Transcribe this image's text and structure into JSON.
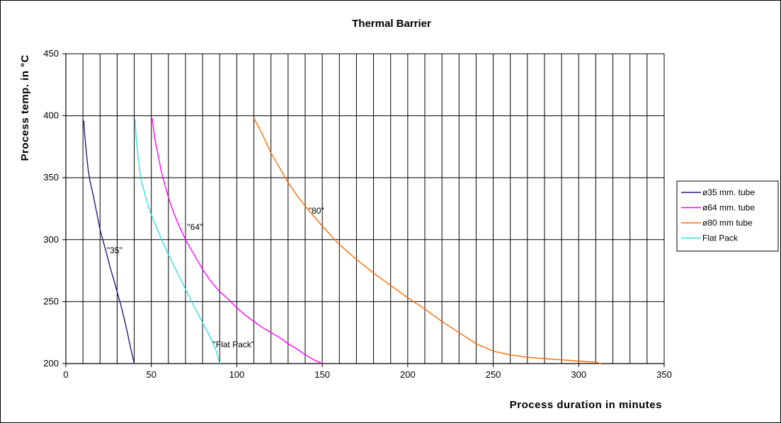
{
  "chart_data": {
    "type": "line",
    "title": "Thermal Barrier",
    "xlabel": "Process duration in minutes",
    "ylabel": "Process temp. in °C",
    "xlim": [
      0,
      350
    ],
    "ylim": [
      200,
      450
    ],
    "x_major_ticks": [
      "0",
      "50",
      "100",
      "150",
      "200",
      "250",
      "300",
      "350"
    ],
    "y_major_ticks": [
      "200",
      "250",
      "300",
      "350",
      "400",
      "450"
    ],
    "x_minor_step": 10,
    "grid": {
      "vertical": "every 10",
      "horizontal": "every 50"
    },
    "legend_position": "right",
    "series": [
      {
        "name": "ø35 mm. tube",
        "color": "#1f1f7a",
        "points": [
          [
            10.5,
            396
          ],
          [
            11,
            385
          ],
          [
            12,
            370
          ],
          [
            13,
            357
          ],
          [
            14,
            348
          ],
          [
            16,
            336
          ],
          [
            18,
            322
          ],
          [
            20,
            308
          ],
          [
            22,
            298
          ],
          [
            24,
            288
          ],
          [
            26,
            277
          ],
          [
            28,
            268
          ],
          [
            30,
            258
          ],
          [
            32,
            248
          ],
          [
            34,
            237
          ],
          [
            36,
            225
          ],
          [
            38,
            212
          ],
          [
            40,
            200
          ]
        ]
      },
      {
        "name": "ø64 mm. tube",
        "color": "#ff00ff",
        "points": [
          [
            50.5,
            398
          ],
          [
            52,
            382
          ],
          [
            54,
            368
          ],
          [
            56,
            354
          ],
          [
            58,
            344
          ],
          [
            60,
            334
          ],
          [
            63,
            322
          ],
          [
            66,
            312
          ],
          [
            70,
            300
          ],
          [
            75,
            288
          ],
          [
            80,
            276
          ],
          [
            85,
            266
          ],
          [
            90,
            258
          ],
          [
            95,
            252
          ],
          [
            100,
            245
          ],
          [
            105,
            239
          ],
          [
            110,
            234
          ],
          [
            115,
            229
          ],
          [
            120,
            225
          ],
          [
            125,
            221
          ],
          [
            130,
            216
          ],
          [
            135,
            212
          ],
          [
            140,
            207
          ],
          [
            145,
            203
          ],
          [
            150,
            200
          ]
        ]
      },
      {
        "name": "ø80 mm tube",
        "color": "#ff6a00",
        "points": [
          [
            110,
            398
          ],
          [
            115,
            385
          ],
          [
            120,
            370
          ],
          [
            125,
            358
          ],
          [
            130,
            346
          ],
          [
            135,
            336
          ],
          [
            140,
            327
          ],
          [
            145,
            319
          ],
          [
            150,
            311
          ],
          [
            160,
            296
          ],
          [
            170,
            284
          ],
          [
            180,
            273
          ],
          [
            190,
            263
          ],
          [
            200,
            253
          ],
          [
            210,
            244
          ],
          [
            220,
            234
          ],
          [
            230,
            225
          ],
          [
            240,
            216
          ],
          [
            250,
            210
          ],
          [
            260,
            207
          ],
          [
            270,
            205
          ],
          [
            280,
            204
          ],
          [
            290,
            203
          ],
          [
            300,
            202
          ],
          [
            310,
            201
          ],
          [
            313,
            200
          ]
        ]
      },
      {
        "name": "Flat Pack",
        "color": "#33e0e0",
        "points": [
          [
            40.5,
            397
          ],
          [
            41,
            384
          ],
          [
            42,
            370
          ],
          [
            43,
            358
          ],
          [
            44,
            348
          ],
          [
            46,
            338
          ],
          [
            48,
            328
          ],
          [
            50,
            320
          ],
          [
            53,
            310
          ],
          [
            56,
            300
          ],
          [
            60,
            288
          ],
          [
            65,
            274
          ],
          [
            70,
            260
          ],
          [
            75,
            246
          ],
          [
            80,
            233
          ],
          [
            85,
            220
          ],
          [
            88,
            210
          ],
          [
            90,
            200
          ]
        ]
      }
    ],
    "annotations": [
      {
        "text": "\"35\"",
        "x": 24,
        "y": 289
      },
      {
        "text": "\"64\"",
        "x": 71,
        "y": 308
      },
      {
        "text": "\"80\"",
        "x": 142,
        "y": 321
      },
      {
        "text": "\"Flat Pack\"",
        "x": 86,
        "y": 213
      }
    ]
  }
}
